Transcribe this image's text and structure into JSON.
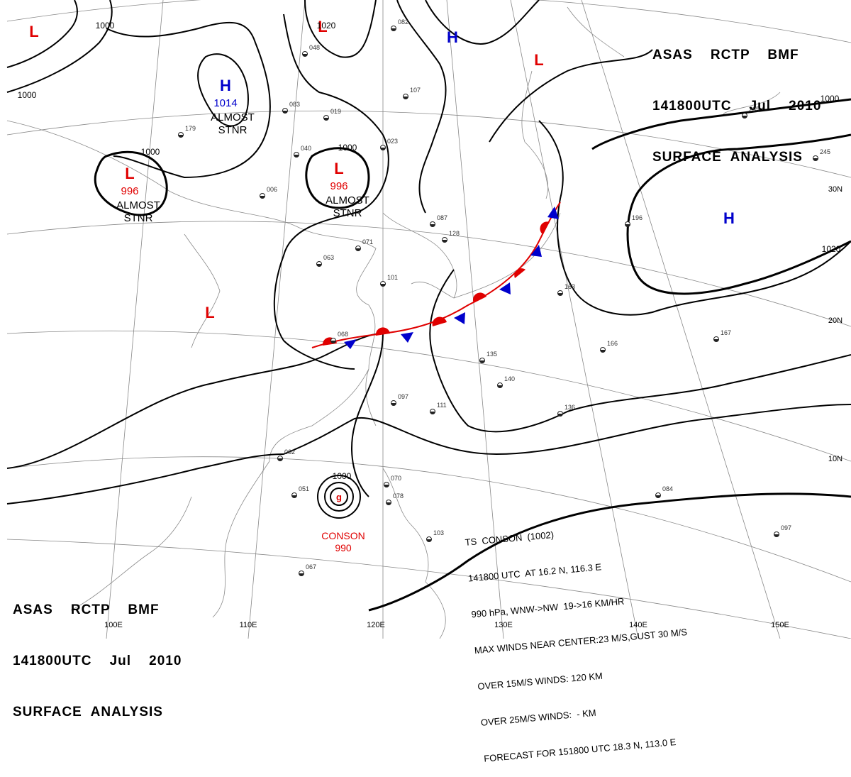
{
  "header": {
    "line1": "ASAS    RCTP    BMF",
    "line2": "141800UTC    Jul    2010",
    "line3": "SURFACE  ANALYSIS"
  },
  "pressure_systems": [
    {
      "kind": "L",
      "color": "#e00000",
      "value": "",
      "note": ""
    },
    {
      "kind": "H",
      "color": "#0000cc",
      "value": "1014",
      "note": "ALMOST STNR"
    },
    {
      "kind": "L",
      "color": "#e00000",
      "value": "996",
      "note": "ALMOST STNR"
    },
    {
      "kind": "L",
      "color": "#e00000",
      "value": "",
      "note": ""
    },
    {
      "kind": "L",
      "color": "#e00000",
      "value": "996",
      "note": "ALMOST STNR"
    },
    {
      "kind": "H",
      "color": "#0000cc",
      "value": "",
      "note": ""
    },
    {
      "kind": "L",
      "color": "#e00000",
      "value": "",
      "note": ""
    },
    {
      "kind": "H",
      "color": "#0000cc",
      "value": "",
      "note": ""
    },
    {
      "kind": "L",
      "color": "#e00000",
      "value": "",
      "note": ""
    }
  ],
  "typhoon": {
    "name": "CONSON",
    "pressure": "990"
  },
  "isobar_labels": [
    "1000",
    "1000",
    "1000",
    "1000",
    "1000",
    "1000",
    "1020",
    "1020"
  ],
  "longitude_labels": [
    "100E",
    "110E",
    "120E",
    "130E",
    "140E",
    "150E"
  ],
  "latitude_labels": [
    "30N",
    "20N",
    "10N"
  ],
  "station_plots": [
    "082",
    "048",
    "107",
    "019",
    "083",
    "179",
    "040",
    "023",
    "006",
    "063",
    "071",
    "087",
    "128",
    "101",
    "068",
    "135",
    "140",
    "097",
    "111",
    "062",
    "051",
    "067",
    "070",
    "078",
    "103",
    "166",
    "163",
    "167",
    "196",
    "136",
    "097",
    "084",
    "245",
    "235"
  ],
  "ts_bulletin": [
    "TS  CONSON  (1002)",
    "141800 UTC  AT 16.2 N, 116.3 E",
    "990 hPa, WNW->NW  19->16 KM/HR",
    "MAX WINDS NEAR CENTER:23 M/S,GUST 30 M/S",
    "OVER 15M/S WINDS: 120 KM",
    "OVER 25M/S WINDS:  - KM",
    "FORECAST FOR 151800 UTC 18.3 N, 113.0 E"
  ],
  "colors": {
    "low": "#e00000",
    "high": "#0000cc",
    "front_warm": "#e00000",
    "front_cold": "#0000cc"
  }
}
